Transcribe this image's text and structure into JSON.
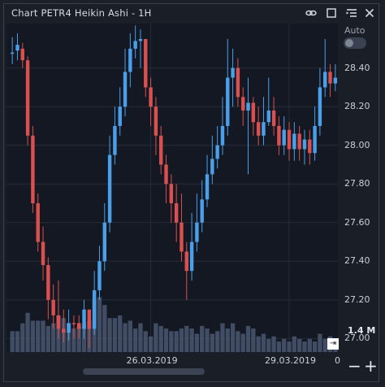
{
  "window": {
    "title": "Chart PETR4 Heikin Ashi - 1H",
    "icons": [
      "link-icon",
      "maximize-icon",
      "menu-icon",
      "close-icon"
    ],
    "auto_label": "Auto",
    "volume_label": "1.4 M",
    "zero_label": "0",
    "zoom_out": "−",
    "zoom_in": "+",
    "scroll_icon": "⇥"
  },
  "colors": {
    "up": "#4a9fe8",
    "down": "#d9504e",
    "volume": "#4a5770",
    "grid": "#262d3a"
  },
  "chart_data": {
    "type": "candlestick",
    "title": "Chart PETR4 Heikin Ashi - 1H",
    "ylim": [
      26.93,
      28.63
    ],
    "yticks": [
      27.0,
      27.2,
      27.4,
      27.6,
      27.8,
      28.0,
      28.2,
      28.4
    ],
    "x_tick_labels": [
      {
        "label": "26.03.2019",
        "index": 27
      },
      {
        "label": "29.03.2019",
        "index": 54
      }
    ],
    "candles": [
      [
        28.48,
        28.48,
        28.56,
        28.42,
        "up"
      ],
      [
        28.49,
        28.52,
        28.58,
        28.44,
        "up"
      ],
      [
        28.5,
        28.44,
        28.53,
        28.4,
        "down"
      ],
      [
        28.44,
        28.05,
        28.46,
        28.0,
        "down"
      ],
      [
        28.05,
        27.7,
        28.1,
        27.65,
        "down"
      ],
      [
        27.7,
        27.5,
        27.75,
        27.45,
        "down"
      ],
      [
        27.5,
        27.38,
        27.58,
        27.3,
        "down"
      ],
      [
        27.38,
        27.2,
        27.42,
        27.1,
        "down"
      ],
      [
        27.2,
        27.12,
        27.28,
        27.05,
        "down"
      ],
      [
        27.12,
        27.05,
        27.3,
        27.0,
        "down"
      ],
      [
        27.05,
        27.03,
        27.15,
        26.98,
        "down"
      ],
      [
        27.03,
        27.08,
        27.15,
        26.99,
        "up"
      ],
      [
        27.08,
        27.08,
        27.12,
        27.0,
        "down"
      ],
      [
        27.08,
        27.05,
        27.12,
        27.0,
        "down"
      ],
      [
        27.05,
        27.15,
        27.2,
        27.0,
        "up"
      ],
      [
        27.15,
        27.05,
        27.12,
        26.95,
        "down"
      ],
      [
        27.05,
        27.25,
        27.35,
        27.02,
        "up"
      ],
      [
        27.25,
        27.4,
        27.48,
        27.2,
        "up"
      ],
      [
        27.4,
        27.6,
        27.7,
        27.35,
        "up"
      ],
      [
        27.6,
        27.95,
        28.05,
        27.55,
        "up"
      ],
      [
        27.95,
        28.1,
        28.2,
        27.9,
        "up"
      ],
      [
        28.1,
        28.2,
        28.3,
        28.05,
        "up"
      ],
      [
        28.2,
        28.38,
        28.5,
        28.15,
        "up"
      ],
      [
        28.38,
        28.5,
        28.58,
        28.3,
        "up"
      ],
      [
        28.5,
        28.54,
        28.62,
        28.45,
        "up"
      ],
      [
        28.54,
        28.55,
        28.6,
        28.4,
        "up"
      ],
      [
        28.55,
        28.3,
        28.55,
        28.25,
        "down"
      ],
      [
        28.3,
        28.2,
        28.35,
        28.1,
        "down"
      ],
      [
        28.2,
        28.05,
        28.25,
        27.95,
        "down"
      ],
      [
        28.05,
        27.9,
        28.1,
        27.85,
        "down"
      ],
      [
        27.9,
        27.8,
        27.95,
        27.7,
        "down"
      ],
      [
        27.8,
        27.7,
        27.85,
        27.6,
        "down"
      ],
      [
        27.7,
        27.6,
        27.8,
        27.5,
        "down"
      ],
      [
        27.6,
        27.45,
        27.75,
        27.4,
        "down"
      ],
      [
        27.45,
        27.35,
        27.5,
        27.2,
        "down"
      ],
      [
        27.35,
        27.5,
        27.65,
        27.3,
        "up"
      ],
      [
        27.5,
        27.6,
        27.75,
        27.45,
        "up"
      ],
      [
        27.6,
        27.72,
        27.82,
        27.55,
        "up"
      ],
      [
        27.72,
        27.85,
        27.95,
        27.68,
        "up"
      ],
      [
        27.85,
        27.93,
        28.05,
        27.8,
        "up"
      ],
      [
        27.93,
        28.0,
        28.1,
        27.88,
        "up"
      ],
      [
        28.0,
        28.1,
        28.25,
        27.95,
        "up"
      ],
      [
        28.1,
        28.35,
        28.55,
        28.05,
        "up"
      ],
      [
        28.35,
        28.4,
        28.5,
        28.2,
        "up"
      ],
      [
        28.4,
        28.25,
        28.45,
        28.2,
        "down"
      ],
      [
        28.25,
        28.18,
        28.3,
        28.1,
        "down"
      ],
      [
        28.18,
        28.22,
        28.35,
        27.85,
        "up"
      ],
      [
        28.22,
        28.12,
        28.25,
        28.05,
        "down"
      ],
      [
        28.12,
        28.05,
        28.2,
        28.0,
        "down"
      ],
      [
        28.05,
        28.12,
        28.25,
        28.0,
        "up"
      ],
      [
        28.12,
        28.18,
        28.35,
        28.1,
        "up"
      ],
      [
        28.18,
        28.1,
        28.25,
        28.05,
        "down"
      ],
      [
        28.1,
        28.0,
        28.15,
        27.95,
        "down"
      ],
      [
        28.0,
        28.08,
        28.15,
        27.95,
        "up"
      ],
      [
        28.08,
        27.98,
        28.12,
        27.92,
        "down"
      ],
      [
        27.98,
        28.06,
        28.12,
        27.92,
        "up"
      ],
      [
        28.06,
        27.98,
        28.1,
        27.92,
        "down"
      ],
      [
        27.98,
        28.03,
        28.08,
        27.9,
        "up"
      ],
      [
        28.03,
        27.96,
        28.08,
        27.9,
        "down"
      ],
      [
        27.96,
        28.1,
        28.2,
        27.92,
        "up"
      ],
      [
        28.1,
        28.3,
        28.4,
        28.05,
        "up"
      ],
      [
        28.3,
        28.38,
        28.55,
        28.25,
        "up"
      ],
      [
        28.38,
        28.32,
        28.42,
        28.25,
        "down"
      ],
      [
        28.32,
        28.35,
        28.42,
        28.28,
        "up"
      ]
    ],
    "volumes": [
      0.4,
      0.4,
      0.55,
      0.75,
      0.6,
      0.6,
      0.6,
      0.5,
      0.55,
      0.7,
      0.65,
      0.55,
      0.45,
      0.5,
      0.55,
      0.6,
      1.0,
      1.05,
      0.9,
      0.65,
      0.65,
      0.7,
      0.55,
      0.6,
      0.45,
      0.55,
      0.4,
      0.3,
      0.55,
      0.5,
      0.45,
      0.4,
      0.4,
      0.45,
      0.5,
      0.45,
      0.35,
      0.5,
      0.45,
      0.35,
      0.4,
      0.55,
      0.45,
      0.55,
      0.4,
      0.35,
      0.5,
      0.45,
      0.3,
      0.35,
      0.25,
      0.3,
      0.2,
      0.25,
      0.2,
      0.3,
      0.25,
      0.2,
      0.25,
      0.2,
      0.35,
      0.25,
      0.3,
      0.2
    ],
    "volume_max": 1.4
  }
}
